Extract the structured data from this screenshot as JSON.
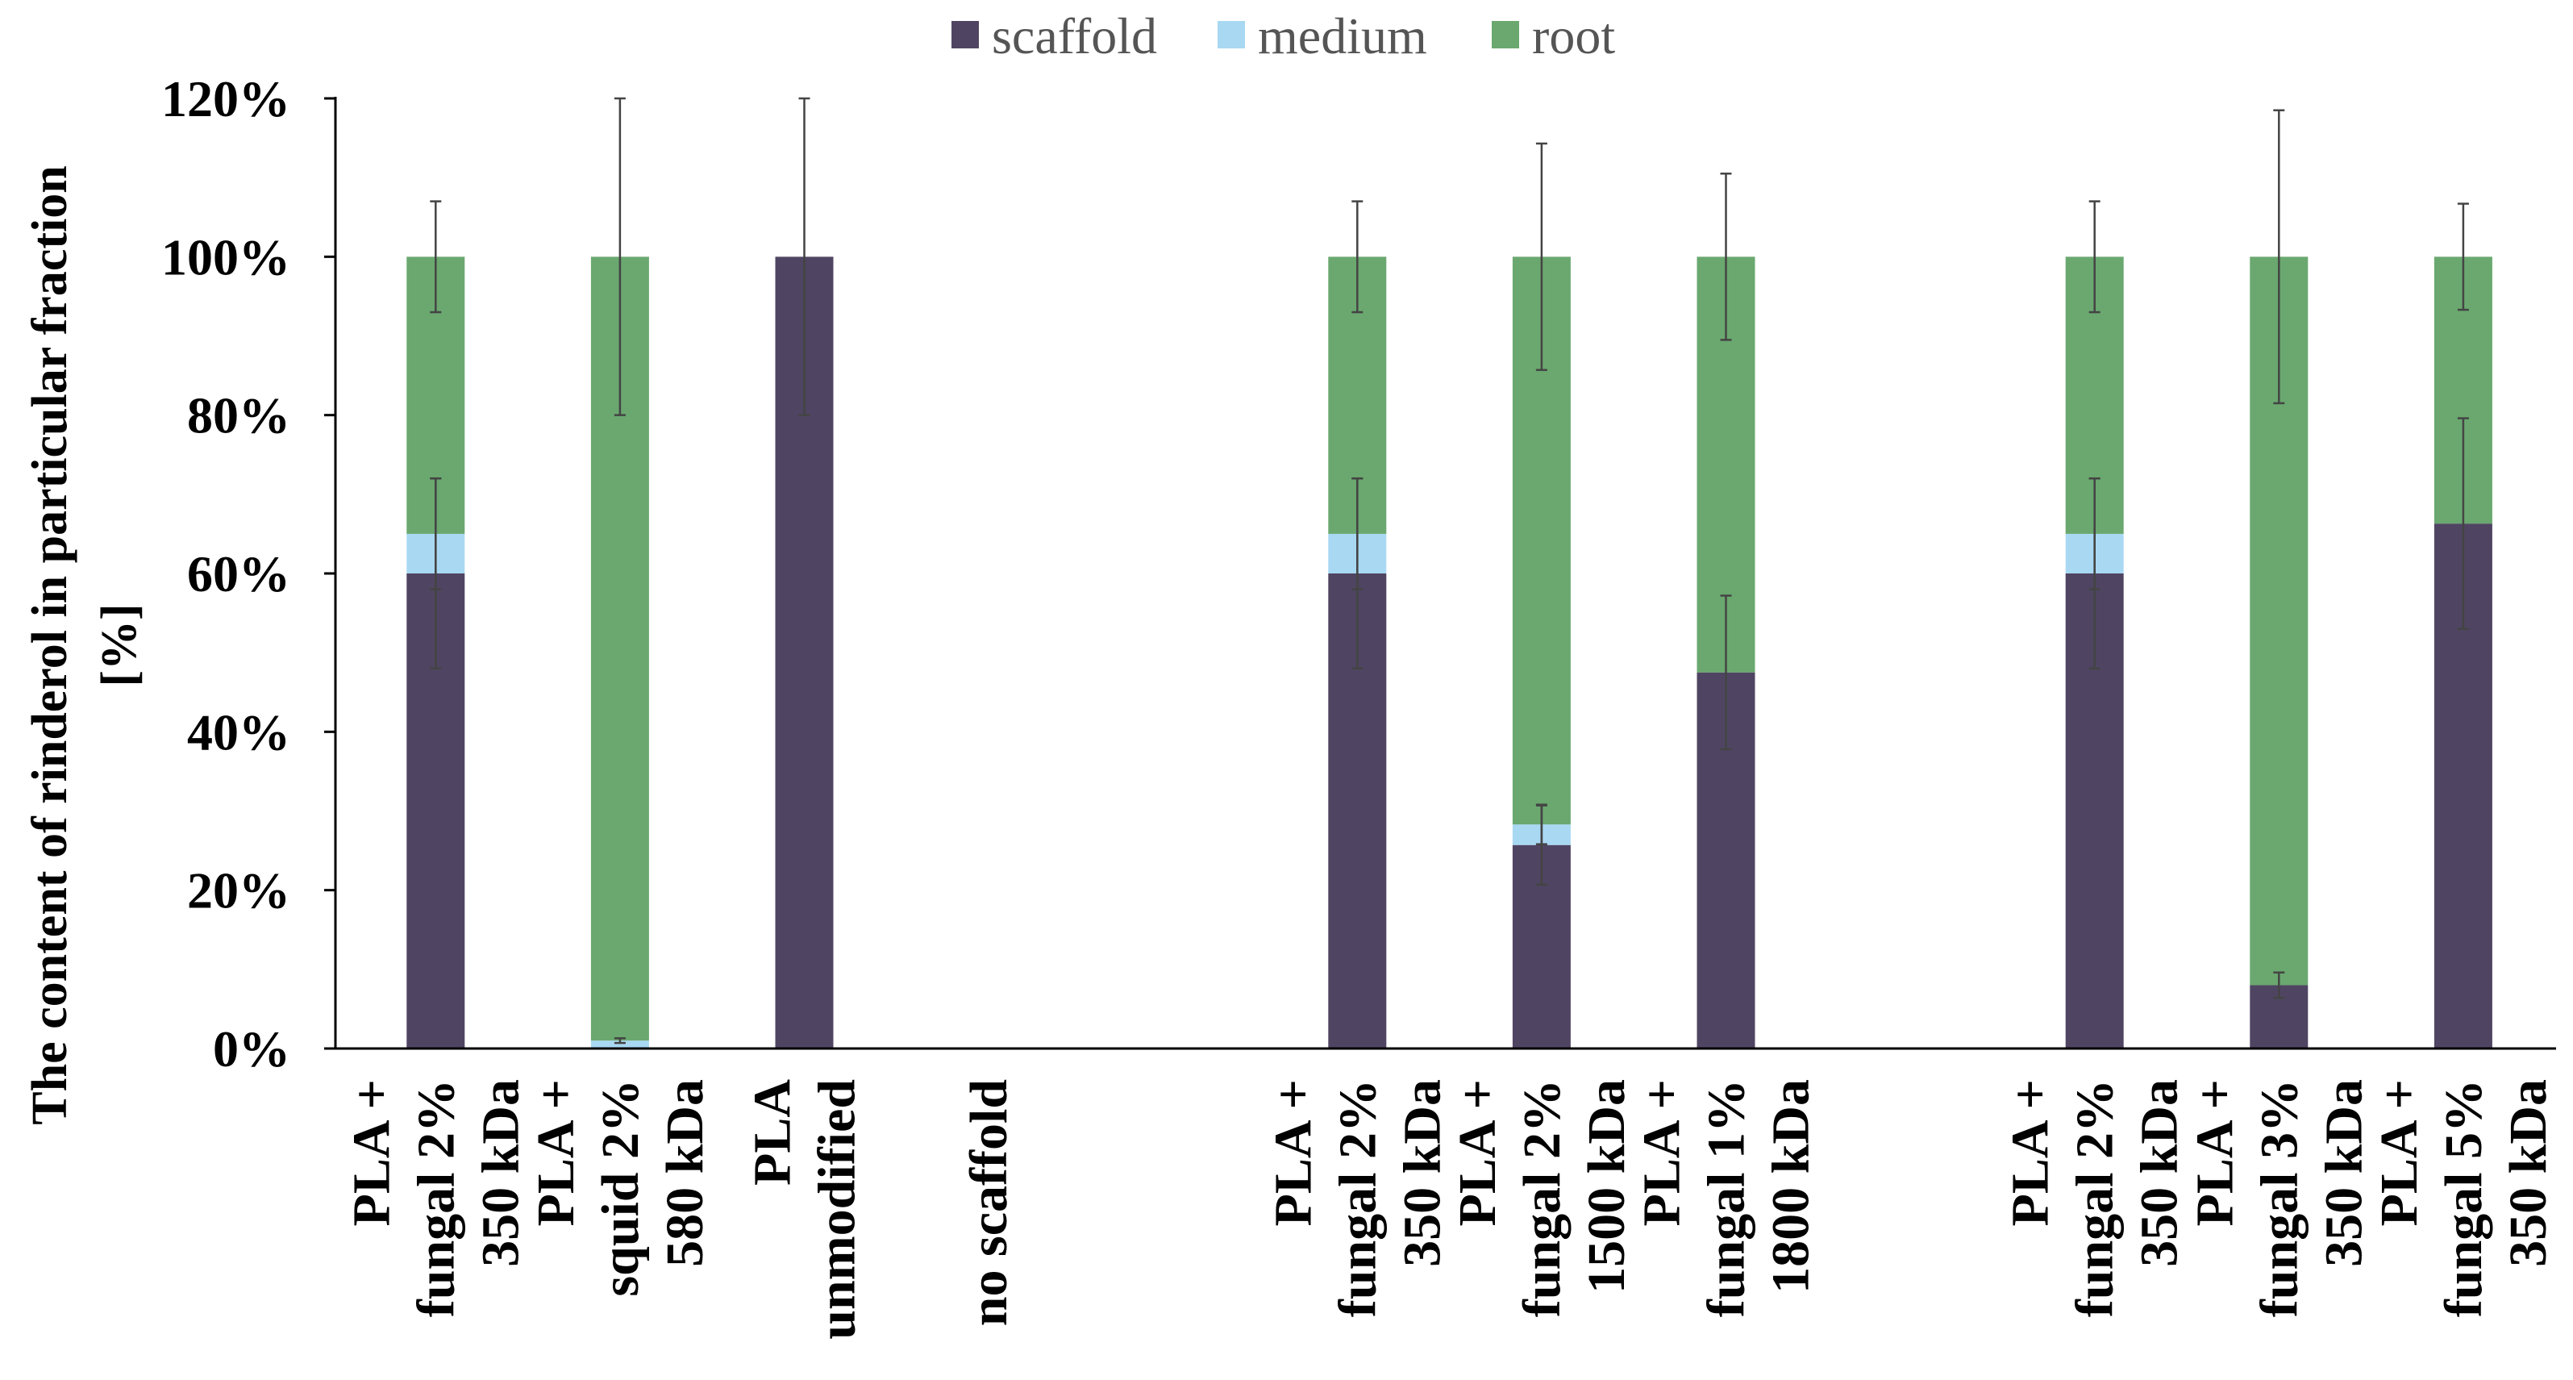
{
  "chart_data": {
    "type": "bar",
    "stacked": true,
    "ylabel_lines": [
      "The content of rinderol in particular fraction",
      "[%]"
    ],
    "ylim": [
      0,
      120
    ],
    "y_ticks": [
      0,
      20,
      40,
      60,
      80,
      100,
      120
    ],
    "y_tick_labels": [
      "0%",
      "20%",
      "40%",
      "60%",
      "80%",
      "100%",
      "120%"
    ],
    "legend_position": "top-center",
    "colors": {
      "scaffold": "#4f4562",
      "medium": "#a9d8f3",
      "root": "#6aa86f",
      "error": "#444444"
    },
    "series": [
      {
        "key": "scaffold",
        "name": "scaffold"
      },
      {
        "key": "medium",
        "name": "medium"
      },
      {
        "key": "root",
        "name": "root"
      }
    ],
    "categories": [
      {
        "lines": [
          "PLA +",
          "fungal 2%",
          "350 kDa"
        ],
        "scaffold": 60,
        "medium": 5,
        "root": 35,
        "err_scaffold": 12,
        "err_medium": 7,
        "err_root": 7
      },
      {
        "lines": [
          "PLA +",
          "squid 2%",
          "580 kDa"
        ],
        "scaffold": 0,
        "medium": 1,
        "root": 99,
        "err_scaffold": 0,
        "err_medium": 0.3,
        "err_root": 20
      },
      {
        "lines": [
          "PLA",
          "unmodified"
        ],
        "scaffold": 100,
        "medium": 0,
        "root": 0,
        "err_scaffold": 20,
        "err_medium": 0,
        "err_root": 0
      },
      {
        "lines": [
          "no scaffold"
        ],
        "scaffold": 0,
        "medium": 0,
        "root": 0,
        "err_scaffold": 0,
        "err_medium": 0,
        "err_root": 0
      },
      {
        "lines": [],
        "scaffold": 0,
        "medium": 0,
        "root": 0,
        "err_scaffold": 0,
        "err_medium": 0,
        "err_root": 0
      },
      {
        "lines": [
          "PLA +",
          "fungal 2%",
          "350 kDa"
        ],
        "scaffold": 60,
        "medium": 5,
        "root": 35,
        "err_scaffold": 12,
        "err_medium": 7,
        "err_root": 7
      },
      {
        "lines": [
          "PLA +",
          "fungal 2%",
          "1500 kDa"
        ],
        "scaffold": 25.7,
        "medium": 2.6,
        "root": 71.7,
        "err_scaffold": 5,
        "err_medium": 2.5,
        "err_root": 14.3
      },
      {
        "lines": [
          "PLA +",
          "fungal 1%",
          "1800 kDa"
        ],
        "scaffold": 47.5,
        "medium": 0,
        "root": 52.5,
        "err_scaffold": 9.7,
        "err_medium": 0,
        "err_root": 10.5
      },
      {
        "lines": [],
        "scaffold": 0,
        "medium": 0,
        "root": 0,
        "err_scaffold": 0,
        "err_medium": 0,
        "err_root": 0
      },
      {
        "lines": [
          "PLA +",
          "fungal 2%",
          "350 kDa"
        ],
        "scaffold": 60,
        "medium": 5,
        "root": 35,
        "err_scaffold": 12,
        "err_medium": 7,
        "err_root": 7
      },
      {
        "lines": [
          "PLA +",
          "fungal 3%",
          "350 kDa"
        ],
        "scaffold": 8,
        "medium": 0,
        "root": 92,
        "err_scaffold": 1.6,
        "err_medium": 0,
        "err_root": 18.5
      },
      {
        "lines": [
          "PLA +",
          "fungal 5%",
          "350 kDa"
        ],
        "scaffold": 66.3,
        "medium": 0,
        "root": 33.7,
        "err_scaffold": 13.3,
        "err_medium": 0,
        "err_root": 6.7
      }
    ]
  }
}
